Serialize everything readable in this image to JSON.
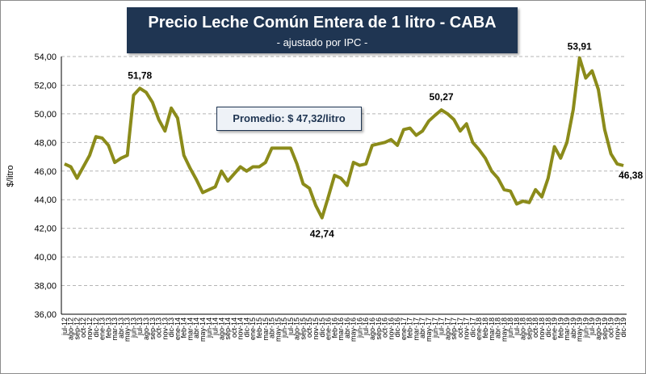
{
  "chart_data": {
    "type": "line",
    "title": "Precio Leche Común Entera de 1 litro - CABA",
    "subtitle": "- ajustado por IPC -",
    "ylabel": "$/litro",
    "xlabel": "",
    "ylim": [
      36,
      54
    ],
    "yticks": [
      "36,00",
      "38,00",
      "40,00",
      "42,00",
      "44,00",
      "46,00",
      "48,00",
      "50,00",
      "52,00",
      "54,00"
    ],
    "grid": "horizontal dashed",
    "line_color": "#8b8b1a",
    "categories": [
      "jul-12",
      "ago-12",
      "sep-12",
      "oct-12",
      "nov-12",
      "dic-12",
      "ene-13",
      "feb-13",
      "mar-13",
      "abr-13",
      "may-13",
      "jun-13",
      "jul-13",
      "ago-13",
      "sep-13",
      "oct-13",
      "nov-13",
      "dic-13",
      "ene-14",
      "feb-14",
      "mar-14",
      "abr-14",
      "may-14",
      "jun-14",
      "jul-14",
      "ago-14",
      "sep-14",
      "oct-14",
      "nov-14",
      "dic-14",
      "ene-15",
      "feb-15",
      "mar-15",
      "abr-15",
      "may-15",
      "jun-15",
      "jul-15",
      "ago-15",
      "sep-15",
      "oct-15",
      "nov-15",
      "dic-15",
      "ene-16",
      "feb-16",
      "mar-16",
      "abr-16",
      "may-16",
      "jun-16",
      "jul-16",
      "ago-16",
      "sep-16",
      "oct-16",
      "nov-16",
      "dic-16",
      "ene-17",
      "feb-17",
      "mar-17",
      "abr-17",
      "may-17",
      "jun-17",
      "jul-17",
      "ago-17",
      "sep-17",
      "oct-17",
      "nov-17",
      "dic-17",
      "ene-18",
      "feb-18",
      "mar-18",
      "abr-18",
      "may-18",
      "jun-18",
      "jul-18",
      "ago-18",
      "sep-18",
      "oct-18",
      "nov-18",
      "dic-18",
      "ene-19",
      "feb-19",
      "mar-19",
      "abr-19",
      "may-19",
      "jun-19",
      "jul-19",
      "ago-19",
      "sep-19",
      "oct-19",
      "nov-19",
      "dic-19"
    ],
    "values": [
      46.5,
      46.3,
      45.5,
      46.3,
      47.1,
      48.4,
      48.3,
      47.8,
      46.6,
      46.9,
      47.1,
      51.3,
      51.78,
      51.5,
      50.8,
      49.6,
      48.8,
      50.4,
      49.7,
      47.1,
      46.2,
      45.4,
      44.5,
      44.7,
      44.9,
      46.0,
      45.3,
      45.8,
      46.3,
      46.0,
      46.3,
      46.3,
      46.6,
      47.6,
      47.6,
      47.6,
      47.6,
      46.5,
      45.1,
      44.8,
      43.6,
      42.74,
      44.2,
      45.7,
      45.5,
      45.0,
      46.6,
      46.4,
      46.5,
      47.8,
      47.9,
      48.0,
      48.2,
      47.8,
      48.9,
      49.0,
      48.5,
      48.8,
      49.5,
      49.9,
      50.27,
      50.0,
      49.6,
      48.8,
      49.3,
      48.0,
      47.5,
      46.9,
      46.0,
      45.5,
      44.7,
      44.6,
      43.7,
      43.9,
      43.8,
      44.7,
      44.2,
      45.5,
      47.7,
      46.9,
      48.0,
      50.3,
      53.91,
      52.5,
      53.0,
      51.7,
      48.9,
      47.2,
      46.5,
      46.38
    ],
    "annotations": [
      {
        "label": "51,78",
        "index": 12
      },
      {
        "label": "42,74",
        "index": 41
      },
      {
        "label": "50,27",
        "index": 60
      },
      {
        "label": "53,91",
        "index": 82
      },
      {
        "label": "46,38",
        "index": 89
      }
    ],
    "average_label": "Promedio: $ 47,32/litro"
  }
}
